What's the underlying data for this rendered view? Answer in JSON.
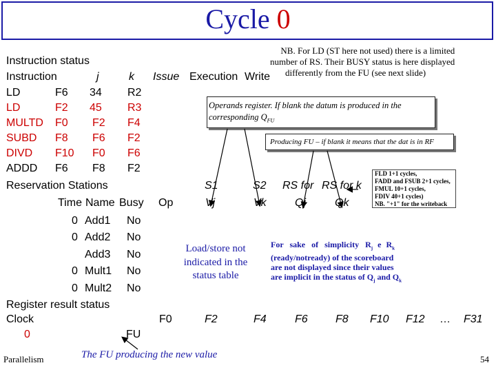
{
  "title": {
    "word": "Cycle",
    "number": "0"
  },
  "instruction_status": {
    "heading": "Instruction status",
    "headers": {
      "instruction": "Instruction",
      "j": "j",
      "k": "k",
      "issue": "Issue",
      "execution": "Execution",
      "write": "Write"
    },
    "rows": [
      {
        "op": "LD",
        "dest": "F6",
        "j": "34",
        "k": "R2",
        "color": "#000000"
      },
      {
        "op": "LD",
        "dest": "F2",
        "j": "45",
        "k": "R3",
        "color": "#cc0000"
      },
      {
        "op": "MULTD",
        "dest": "F0",
        "j": "F2",
        "k": "F4",
        "color": "#cc0000"
      },
      {
        "op": "SUBD",
        "dest": "F8",
        "j": "F6",
        "k": "F2",
        "color": "#cc0000"
      },
      {
        "op": "DIVD",
        "dest": "F10",
        "j": "F0",
        "k": "F6",
        "color": "#cc0000"
      },
      {
        "op": "ADDD",
        "dest": "F6",
        "j": "F8",
        "k": "F2",
        "color": "#000000"
      }
    ]
  },
  "reservation_stations": {
    "heading": "Reservation Stations",
    "headers": {
      "time": "Time",
      "name": "Name",
      "busy": "Busy",
      "op": "Op",
      "s1": "S1",
      "s2": "S2",
      "rs_for_j": "RS for",
      "rs_for_k": "RS for k",
      "vj": "Vj",
      "vk": "Vk",
      "qj": "Qj",
      "qk": "Qk"
    },
    "rows": [
      {
        "time": "0",
        "name": "Add1",
        "busy": "No"
      },
      {
        "time": "0",
        "name": "Add2",
        "busy": "No"
      },
      {
        "time": "",
        "name": "Add3",
        "busy": "No"
      },
      {
        "time": "0",
        "name": "Mult1",
        "busy": "No"
      },
      {
        "time": "0",
        "name": "Mult2",
        "busy": "No"
      }
    ]
  },
  "register_result_status": {
    "heading": "Register result status",
    "clock_label": "Clock",
    "clock_value": "0",
    "fu_label": "FU",
    "registers": [
      "F0",
      "F2",
      "F4",
      "F6",
      "F8",
      "F10",
      "F12",
      "…",
      "F31"
    ]
  },
  "notes": {
    "nb": [
      "NB. For LD (ST here not used) there is a limited",
      "number of RS. Their BUSY status is here displayed",
      "differently from the FU (see next slide)"
    ],
    "operands": [
      "Operands register. If blank the datum is produced in the",
      "corresponding Q"
    ],
    "operands_sub": "FU",
    "producing": "Producing FU – if blank it means that the dat is in RF",
    "cycles": [
      "FLD 1+1 cycles,",
      "FADD and FSUB 2+1 cycles,",
      "FMUL 10+1 cycles,",
      "FDIV 40+1 cycles)",
      "NB. \"+1\" for the writeback"
    ],
    "load_store": [
      "Load/store not",
      "indicated in the",
      "status table"
    ],
    "simplicity": [
      "For sake of simplicity R",
      " e R",
      "(ready/notready) of the scoreboard",
      "are not displayed since their values",
      "are implicit in the status of Q",
      " and Q"
    ],
    "simplicity_subs": {
      "j": "j",
      "k": "k"
    },
    "fu_producing": "The FU producing the new value"
  },
  "footer": {
    "left": "Parallelism",
    "page": "54"
  }
}
